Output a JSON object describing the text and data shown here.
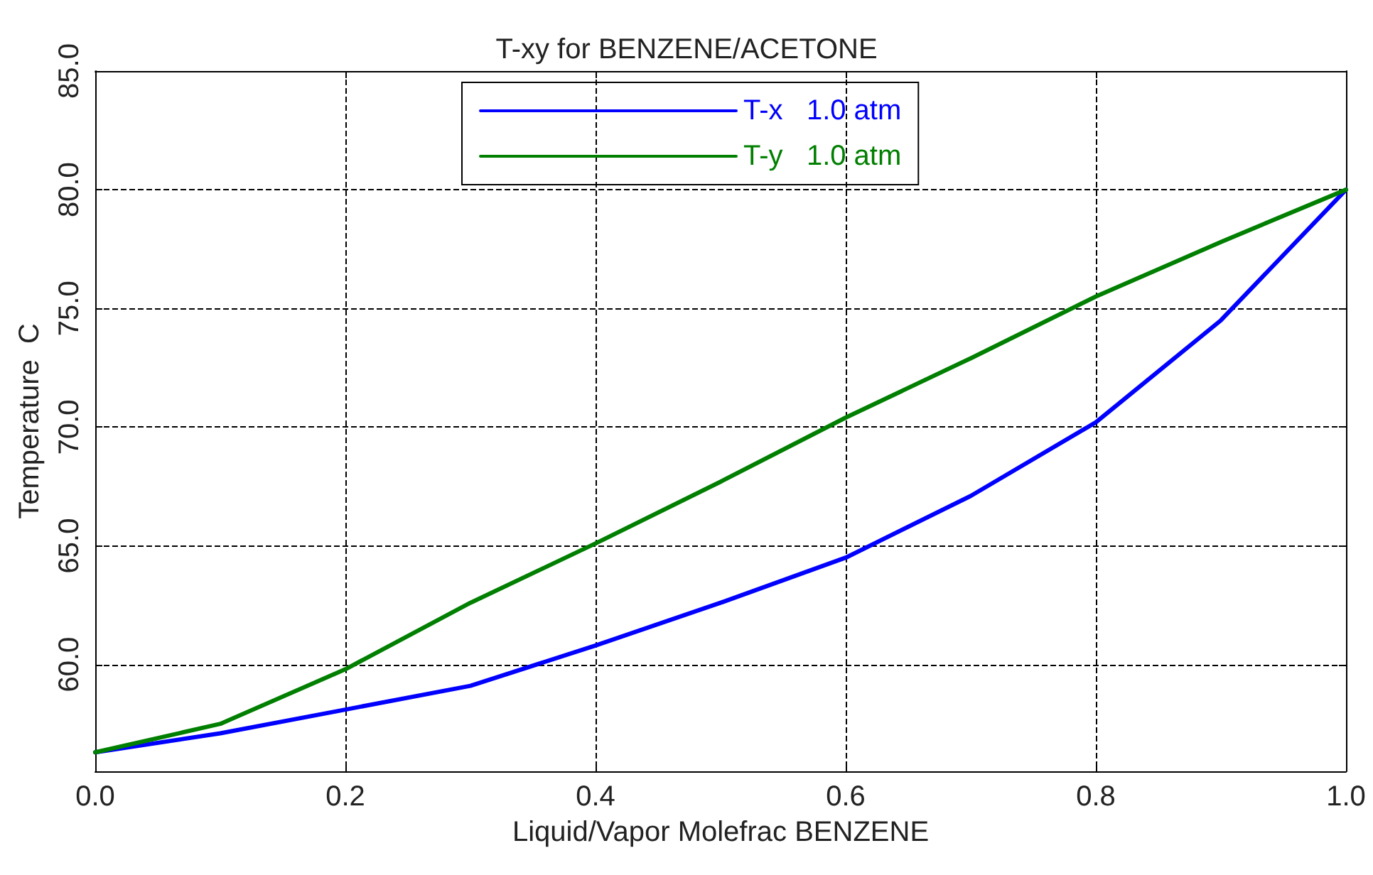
{
  "chart_data": {
    "type": "line",
    "title": "T-xy for BENZENE/ACETONE",
    "xlabel": "Liquid/Vapor Molefrac BENZENE",
    "ylabel": "Temperature  C",
    "x": [
      0,
      0.1,
      0.2,
      0.3,
      0.4,
      0.5,
      0.6,
      0.7,
      0.8,
      0.9,
      1.0
    ],
    "series": [
      {
        "name": "T-x   1.0 atm",
        "color": "#0000ff",
        "values": [
          56.3,
          57.1,
          58.1,
          59.1,
          60.8,
          62.6,
          64.5,
          67.1,
          70.2,
          74.5,
          80.0
        ]
      },
      {
        "name": "T-y   1.0 atm",
        "color": "#007f00",
        "values": [
          56.3,
          57.5,
          59.8,
          62.6,
          65.1,
          67.7,
          70.4,
          72.9,
          75.5,
          77.8,
          80.0
        ]
      }
    ],
    "xlim": [
      0,
      1
    ],
    "xticks": [
      {
        "value": 0,
        "label": "0.0"
      },
      0.2,
      0.4,
      0.6,
      0.8,
      {
        "value": 1,
        "label": "1.0"
      }
    ],
    "ylim": [
      55.5,
      85
    ],
    "yticks": [
      {
        "value": 60,
        "label": "60.0"
      },
      {
        "value": 65,
        "label": "65.0"
      },
      {
        "value": 70,
        "label": "70.0"
      },
      {
        "value": 75,
        "label": "75.0"
      },
      {
        "value": 80,
        "label": "80.0"
      },
      {
        "value": 85,
        "label": "85.0"
      }
    ],
    "grid": true,
    "legend": "top",
    "marker": "none",
    "line_style": "solid"
  }
}
